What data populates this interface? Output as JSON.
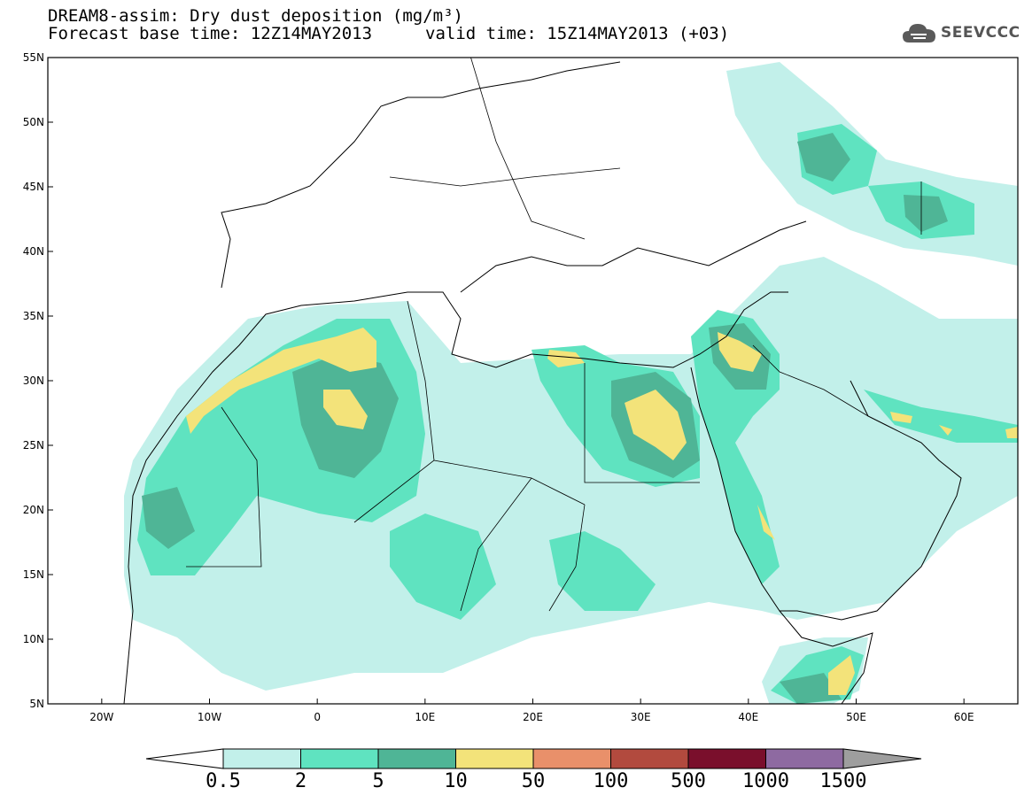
{
  "title": {
    "line1": "DREAM8-assim: Dry dust deposition (mg/m³)",
    "line2_left": "Forecast base time: 12Z14MAY2013",
    "line2_right": "valid time: 15Z14MAY2013 (+03)"
  },
  "logo": {
    "text": "SEEVCCC",
    "icon": "cloud-icon"
  },
  "axes": {
    "lon_range": [
      -25,
      65
    ],
    "lat_range": [
      5,
      55
    ],
    "lat_ticks": [
      "5N",
      "10N",
      "15N",
      "20N",
      "25N",
      "30N",
      "35N",
      "40N",
      "45N",
      "50N",
      "55N"
    ],
    "lon_ticks": [
      "20W",
      "10W",
      "0",
      "10E",
      "20E",
      "30E",
      "40E",
      "50E",
      "60E"
    ]
  },
  "colorbar": {
    "labels": [
      "0.5",
      "2",
      "5",
      "10",
      "50",
      "100",
      "500",
      "1000",
      "1500"
    ],
    "colors": [
      "#c2f0ea",
      "#5fe3c0",
      "#4fb596",
      "#f3e37a",
      "#e9906a",
      "#b24a3e",
      "#7a0f2c",
      "#8e6aa1"
    ],
    "over_color": "#9e9e9e",
    "under_color": "#ffffff"
  },
  "shading_colors": {
    "l1": "#c2f0ea",
    "l2": "#5fe3c0",
    "l3": "#4fb596",
    "l4": "#f3e37a"
  }
}
